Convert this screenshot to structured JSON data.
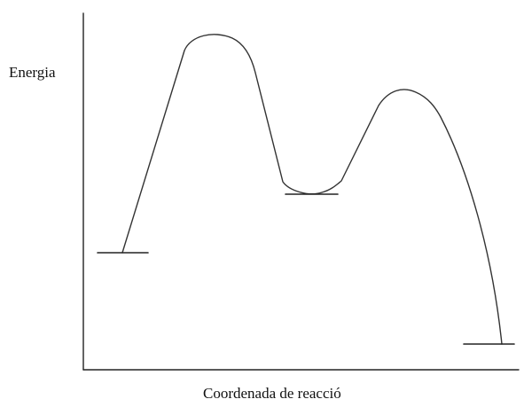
{
  "diagram": {
    "y_axis_label": "Energia",
    "x_axis_label": "Coordenada de reacció"
  }
}
